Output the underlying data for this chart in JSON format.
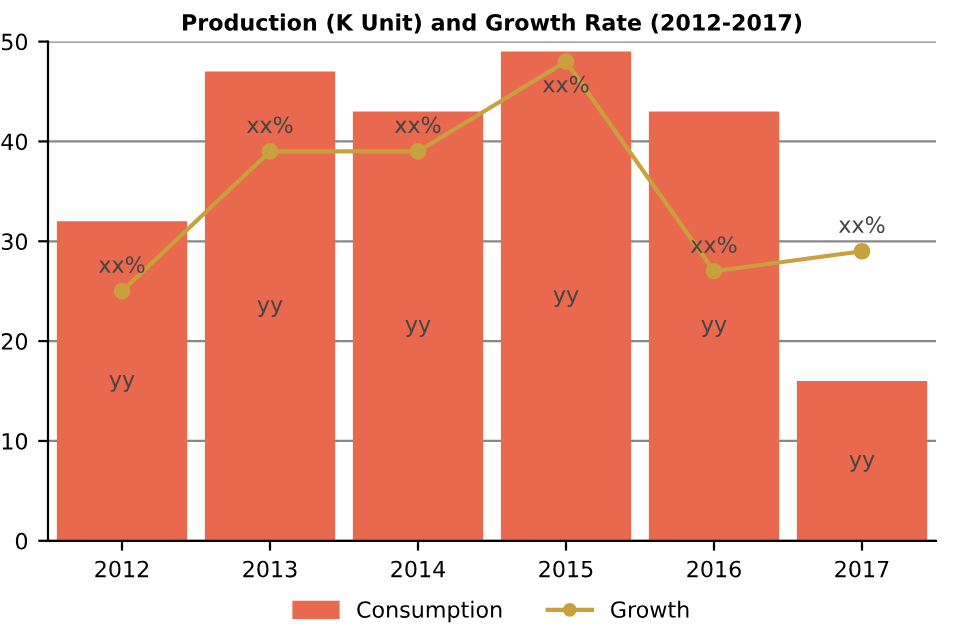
{
  "chart_data": {
    "type": "bar",
    "title": "Production (K Unit) and Growth Rate (2012-2017)",
    "categories": [
      "2012",
      "2013",
      "2014",
      "2015",
      "2016",
      "2017"
    ],
    "series": [
      {
        "name": "Consumption",
        "color": "#e8694e",
        "values": [
          32,
          47,
          43,
          49,
          43,
          16
        ],
        "value_labels": [
          "yy",
          "yy",
          "yy",
          "yy",
          "yy",
          "yy"
        ]
      },
      {
        "name": "Growth",
        "type": "line",
        "color": "#c9a03e",
        "values": [
          25,
          39,
          39,
          48,
          27,
          29
        ],
        "value_labels": [
          "xx%",
          "xx%",
          "xx%",
          "xx%",
          "xx%",
          "xx%"
        ],
        "marker": "circle"
      }
    ],
    "ylim": [
      0,
      50
    ],
    "yticks": [
      0,
      10,
      20,
      30,
      40,
      50
    ],
    "grid": "y",
    "legend": "bottom"
  }
}
